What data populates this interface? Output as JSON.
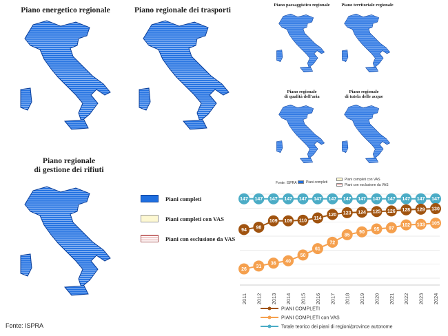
{
  "maps": {
    "energetico": "Piano energetico regionale",
    "trasporti": "Piano regionale dei trasporti",
    "rifiuti_line1": "Piano regionale",
    "rifiuti_line2": "di gestione dei rifiuti",
    "paesaggistico": "Piano paesaggistico regionale",
    "territoriale": "Piano territoriale regionale",
    "aria_line1": "Piano regionale",
    "aria_line2": "di qualità dell'aria",
    "acque_line1": "Piano regionale",
    "acque_line2": "di tutela delle acque"
  },
  "legend": {
    "completi": "Piani completi",
    "completi_vas": "Piani completi con VAS",
    "esclusione": "Piani con esclusione da VAS"
  },
  "small_legend": {
    "fonte": "Fonte: ISPRA",
    "completi": "Piani completi",
    "completi_vas": "Piani completi con VAS",
    "esclusione": "Piani con esclusione da VAS"
  },
  "fonte": "Fonte: ISPRA",
  "colors": {
    "map_blue": "#1f6fe0",
    "totale": "#4bacc6",
    "completi": "#a0530f",
    "completi_vas": "#f5a04e"
  },
  "chart_data": {
    "type": "line",
    "x": [
      "2011",
      "2012",
      "2013",
      "2014",
      "2015",
      "2016",
      "2017",
      "2018",
      "2019",
      "2020",
      "2021",
      "2022",
      "2023",
      "2024"
    ],
    "series": [
      {
        "name": "Totale teorico dei piani di regioni/province autonome",
        "values": [
          147,
          147,
          147,
          147,
          147,
          147,
          147,
          147,
          147,
          147,
          147,
          147,
          147,
          147
        ]
      },
      {
        "name": "PIANI COMPLETI",
        "values": [
          94,
          98,
          109,
          109,
          110,
          114,
          120,
          123,
          124,
          125,
          126,
          128,
          129,
          130
        ]
      },
      {
        "name": "PIANI COMPLETI con VAS",
        "values": [
          26,
          31,
          36,
          40,
          50,
          61,
          72,
          85,
          90,
          95,
          97,
          102,
          103,
          105
        ]
      }
    ],
    "ylim": [
      10,
      155
    ],
    "grid": true,
    "legend_position": "bottom"
  }
}
